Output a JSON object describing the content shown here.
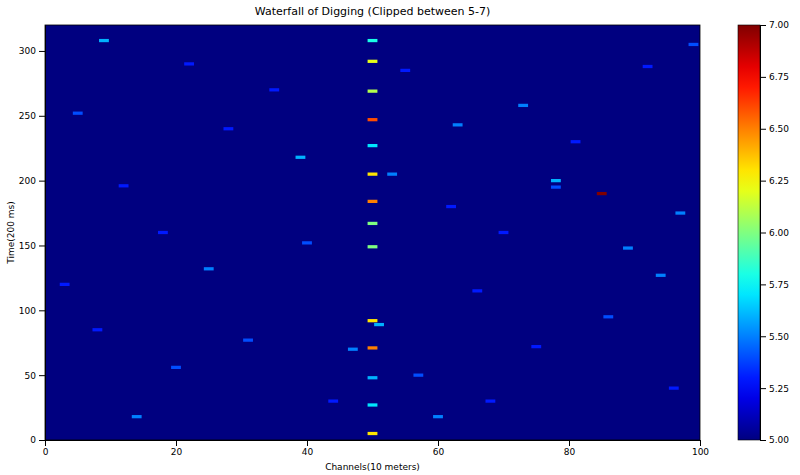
{
  "chart_data": {
    "type": "heatmap",
    "title": "Waterfall of Digging (Clipped between 5-7)",
    "x_label": "Channels(10 meters)",
    "y_label": "Time(200 ms)",
    "xlim": [
      0,
      100
    ],
    "xticks": [
      0,
      20,
      40,
      60,
      80,
      100
    ],
    "ylim": [
      0,
      320
    ],
    "yticks": [
      0,
      50,
      100,
      150,
      200,
      250,
      300
    ],
    "cells": {
      "x": [
        50,
        50,
        50,
        50,
        50,
        50,
        50,
        50,
        50,
        50,
        50,
        50,
        50,
        50,
        51,
        9,
        14,
        25,
        47,
        39,
        53,
        60,
        63,
        73,
        78,
        78,
        85,
        89,
        94,
        97,
        99,
        40,
        31,
        20,
        5,
        12,
        57,
        68,
        86,
        92,
        35,
        70,
        44,
        22,
        3,
        28,
        66,
        75,
        96,
        18,
        55,
        81,
        8,
        62
      ],
      "y": [
        5,
        27,
        48,
        71,
        92,
        149,
        167,
        184,
        205,
        227,
        247,
        269,
        292,
        308,
        89,
        308,
        18,
        132,
        70,
        218,
        205,
        18,
        243,
        258,
        200,
        195,
        190,
        148,
        127,
        175,
        305,
        152,
        77,
        56,
        252,
        196,
        50,
        30,
        95,
        288,
        270,
        160,
        30,
        290,
        120,
        240,
        115,
        72,
        40,
        160,
        285,
        230,
        85,
        180
      ],
      "values": [
        6.3,
        5.7,
        5.6,
        6.5,
        6.3,
        6.0,
        6.0,
        6.5,
        6.3,
        5.7,
        6.6,
        6.1,
        6.2,
        5.8,
        5.6,
        5.6,
        5.5,
        5.5,
        5.5,
        5.6,
        5.5,
        5.5,
        5.5,
        5.5,
        5.6,
        5.4,
        7.0,
        5.5,
        5.5,
        5.5,
        5.4,
        5.4,
        5.4,
        5.4,
        5.4,
        5.3,
        5.4,
        5.3,
        5.4,
        5.3,
        5.3,
        5.3,
        5.3,
        5.3,
        5.3,
        5.3,
        5.3,
        5.3,
        5.3,
        5.3,
        5.3,
        5.3,
        5.3,
        5.3
      ]
    },
    "colorbar": {
      "range": [
        5,
        7
      ],
      "ticks": [
        {
          "value": 5,
          "label": "5.00"
        },
        {
          "value": 5.25,
          "label": "5.25"
        },
        {
          "value": 5.5,
          "label": "5.50"
        },
        {
          "value": 5.75,
          "label": "5.75"
        },
        {
          "value": 6,
          "label": "6.00"
        },
        {
          "value": 6.25,
          "label": "6.25"
        },
        {
          "value": 6.5,
          "label": "6.50"
        },
        {
          "value": 6.75,
          "label": "6.75"
        },
        {
          "value": 7,
          "label": "7.00"
        }
      ]
    }
  }
}
